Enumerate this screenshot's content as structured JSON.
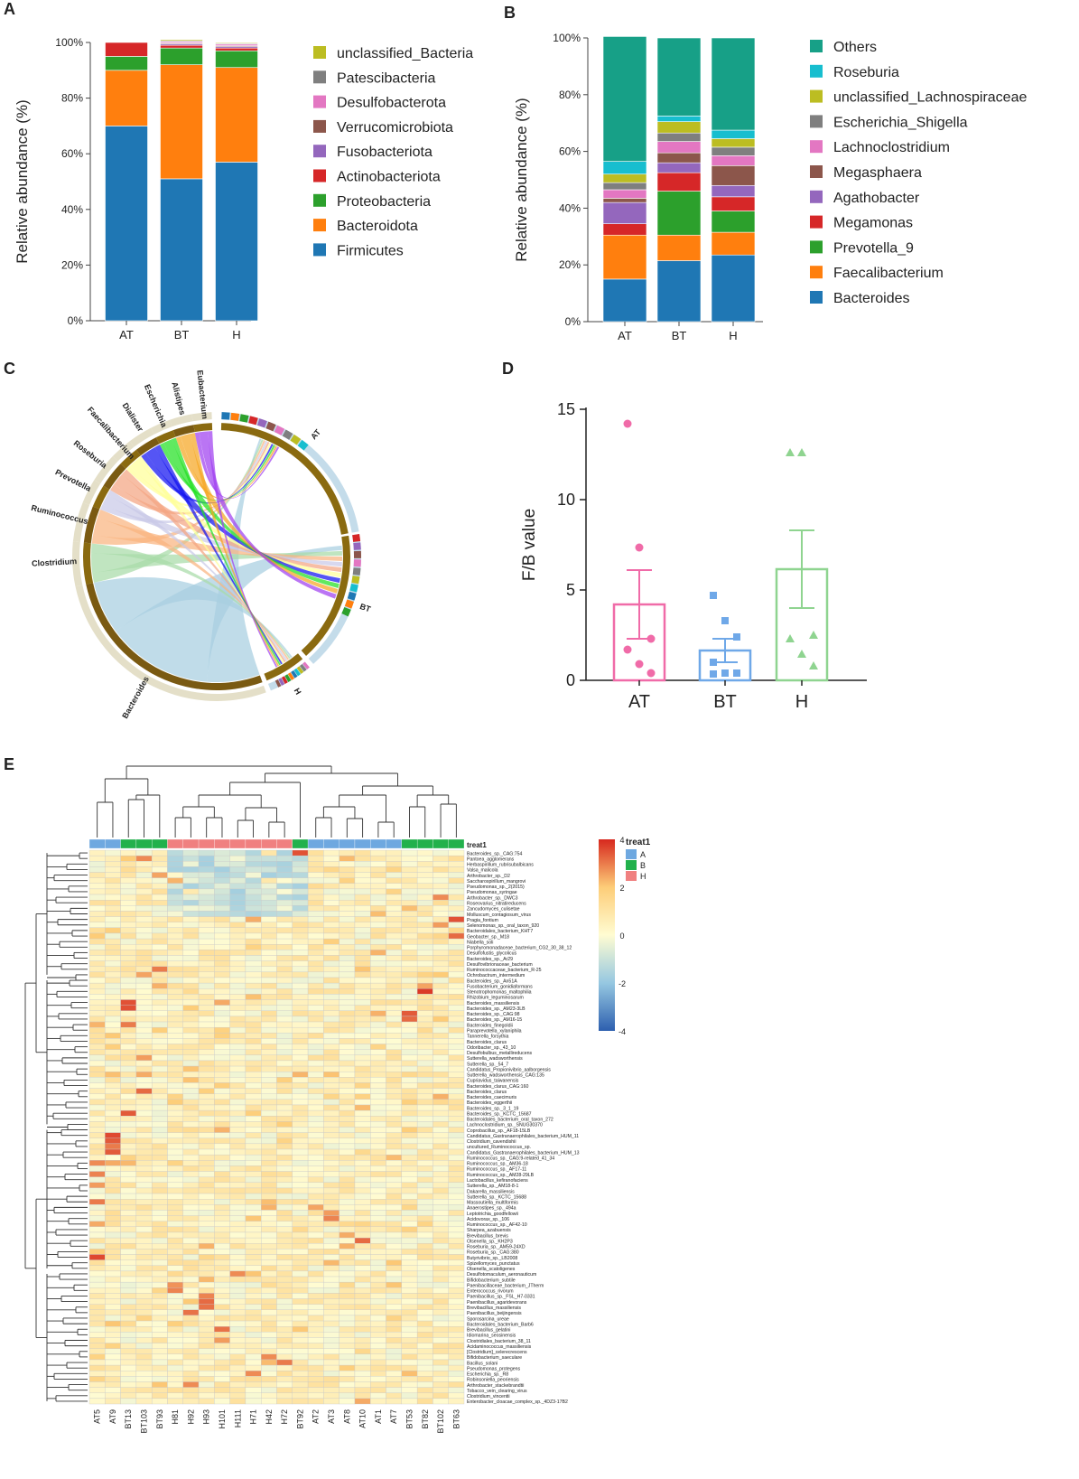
{
  "panels": {
    "a": "A",
    "b": "B",
    "c": "C",
    "d": "D",
    "e": "E"
  },
  "colors": {
    "firmicutes": "#1f77b4",
    "bacteroidota": "#ff7f0e",
    "proteobacteria": "#2ca02c",
    "actinobacteriota": "#d62728",
    "fusobacteriota": "#9467bd",
    "verrucomicrobiota": "#8c564b",
    "desulfobacterota": "#e377c2",
    "patescibacteria": "#7f7f7f",
    "unclassified_bacteria": "#bcbd22",
    "others": "#17a087",
    "roseburia": "#17becf",
    "bar_at": "#f06ba8",
    "bar_bt": "#6fa8e8",
    "bar_h": "#8fd490",
    "group_a": "#6ea8e0",
    "group_b": "#22b14c",
    "group_h": "#f08080"
  },
  "chart_data": [
    {
      "id": "A",
      "type": "bar",
      "stacked": true,
      "categories": [
        "AT",
        "BT",
        "H"
      ],
      "ylabel": "Relative abundance (%)",
      "yticks": [
        "0%",
        "20%",
        "40%",
        "60%",
        "80%",
        "100%"
      ],
      "ylim": [
        0,
        100
      ],
      "series": [
        {
          "name": "Firmicutes",
          "color": "#1f77b4",
          "values": [
            70,
            51,
            57
          ]
        },
        {
          "name": "Bacteroidota",
          "color": "#ff7f0e",
          "values": [
            20,
            41,
            34
          ]
        },
        {
          "name": "Proteobacteria",
          "color": "#2ca02c",
          "values": [
            5,
            6,
            6
          ]
        },
        {
          "name": "Actinobacteriota",
          "color": "#d62728",
          "values": [
            5,
            1,
            1
          ]
        },
        {
          "name": "Fusobacteriota",
          "color": "#9467bd",
          "values": [
            0,
            0.5,
            0.5
          ]
        },
        {
          "name": "Verrucomicrobiota",
          "color": "#8c564b",
          "values": [
            0,
            0.3,
            0.3
          ]
        },
        {
          "name": "Desulfobacterota",
          "color": "#e377c2",
          "values": [
            0,
            0.5,
            0.6
          ]
        },
        {
          "name": "Patescibacteria",
          "color": "#7f7f7f",
          "values": [
            0,
            0.3,
            0.3
          ]
        },
        {
          "name": "unclassified_Bacteria",
          "color": "#bcbd22",
          "values": [
            0,
            0.4,
            0.3
          ]
        }
      ],
      "legend": [
        "unclassified_Bacteria",
        "Patescibacteria",
        "Desulfobacterota",
        "Verrucomicrobiota",
        "Fusobacteriota",
        "Actinobacteriota",
        "Proteobacteria",
        "Bacteroidota",
        "Firmicutes"
      ]
    },
    {
      "id": "B",
      "type": "bar",
      "stacked": true,
      "categories": [
        "AT",
        "BT",
        "H"
      ],
      "ylabel": "Relative abundance (%)",
      "yticks": [
        "0%",
        "20%",
        "40%",
        "60%",
        "80%",
        "100%"
      ],
      "ylim": [
        0,
        100
      ],
      "series": [
        {
          "name": "Bacteroides",
          "color": "#1f77b4",
          "values": [
            15,
            21.5,
            23.5
          ]
        },
        {
          "name": "Faecalibacterium",
          "color": "#ff7f0e",
          "values": [
            15.5,
            9,
            8
          ]
        },
        {
          "name": "Prevotella_9",
          "color": "#2ca02c",
          "values": [
            0,
            15.5,
            7.5
          ]
        },
        {
          "name": "Megamonas",
          "color": "#d62728",
          "values": [
            4,
            6.5,
            5
          ]
        },
        {
          "name": "Agathobacter",
          "color": "#9467bd",
          "values": [
            7.5,
            3.5,
            4
          ]
        },
        {
          "name": "Megasphaera",
          "color": "#8c564b",
          "values": [
            1.5,
            3.5,
            7
          ]
        },
        {
          "name": "Lachnoclostridium",
          "color": "#e377c2",
          "values": [
            3,
            4,
            3.5
          ]
        },
        {
          "name": "Escherichia_Shigella",
          "color": "#7f7f7f",
          "values": [
            2.5,
            3,
            3
          ]
        },
        {
          "name": "unclassified_Lachnospiraceae",
          "color": "#bcbd22",
          "values": [
            3,
            4,
            3
          ]
        },
        {
          "name": "Roseburia",
          "color": "#17becf",
          "values": [
            4.5,
            2,
            3
          ]
        },
        {
          "name": "Others",
          "color": "#17a087",
          "values": [
            44,
            27.5,
            32.5
          ]
        }
      ],
      "legend": [
        "Others",
        "Roseburia",
        "unclassified_Lachnospiraceae",
        "Escherichia_Shigella",
        "Lachnoclostridium",
        "Megasphaera",
        "Agathobacter",
        "Megamonas",
        "Prevotella_9",
        "Faecalibacterium",
        "Bacteroides"
      ]
    },
    {
      "id": "C",
      "type": "chord",
      "genera": [
        "Bacteroides",
        "Clostridium",
        "Ruminococcus",
        "Prevotella",
        "Roseburia",
        "Faecalibacterium",
        "Dialister",
        "Escherichia",
        "Alistipes",
        "Eubacterium"
      ],
      "groups": [
        "AT",
        "BT",
        "H"
      ],
      "genus_colors": [
        "#a7cfe0",
        "#a8dba8",
        "#f9b480",
        "#c9c9e8",
        "#f4a582",
        "#ffff99",
        "#1414f0",
        "#22e022",
        "#f5a623",
        "#a040f0"
      ]
    },
    {
      "id": "D",
      "type": "bar",
      "categories": [
        "AT",
        "BT",
        "H"
      ],
      "ylabel": "F/B value",
      "yticks": [
        "0",
        "5",
        "10",
        "15"
      ],
      "ylim": [
        0,
        15
      ],
      "means": [
        4.2,
        1.65,
        6.15
      ],
      "sem": [
        1.9,
        0.65,
        2.15
      ],
      "points": [
        [
          14.2,
          7.35,
          2.3,
          1.7,
          0.9,
          0.4
        ],
        [
          4.7,
          3.3,
          2.4,
          1.0,
          0.4,
          0.4,
          0.35
        ],
        [
          12.6,
          12.6,
          2.5,
          2.3,
          1.45,
          0.8
        ]
      ],
      "markers": [
        "circle",
        "square",
        "triangle"
      ]
    },
    {
      "id": "E",
      "type": "heatmap",
      "columns": [
        "AT5",
        "AT9",
        "BT13",
        "BT103",
        "BT93",
        "H81",
        "H92",
        "H93",
        "H101",
        "H111",
        "H71",
        "H42",
        "H72",
        "BT92",
        "AT2",
        "AT3",
        "AT8",
        "AT10",
        "AT1",
        "AT7",
        "BT53",
        "BT82",
        "BT102",
        "BT63"
      ],
      "column_groups": [
        "A",
        "A",
        "B",
        "B",
        "B",
        "H",
        "H",
        "H",
        "H",
        "H",
        "H",
        "H",
        "H",
        "B",
        "A",
        "A",
        "A",
        "A",
        "A",
        "A",
        "B",
        "B",
        "B",
        "B"
      ],
      "annotation_title": "treat1",
      "annotation_legend": [
        "A",
        "B",
        "H"
      ],
      "scale_ticks": [
        "4",
        "2",
        "0",
        "-2",
        "-4"
      ],
      "scale_range": [
        -4,
        4
      ],
      "rows": [
        "Bacteroides_sp._CAG:754",
        "Pantoea_agglomerans",
        "Herbaspirillum_rubrisubalbicans",
        "Valsa_malicola",
        "Arthrobacter_sp._D2",
        "Saccharospirillum_mangrovi",
        "Pseudomonas_sp._2(2015)",
        "Pseudomonas_syringae",
        "Arthrobacter_sp._DWC3",
        "Roseovarius_nitratireducens",
        "Zancudomyces_culisetae",
        "Molluscum_contagiosum_virus",
        "Pragia_fontium",
        "Selenomonas_sp._oral_taxon_920",
        "Bacteroidales_bacterium_KHT7",
        "Geobacter_sp._M18",
        "Niabella_soli",
        "Porphyromonadaceae_bacterium_CG2_30_38_12",
        "Desulfofustis_glycolicus",
        "Bacteroides_sp._Ar29",
        "Desulfovibrionaceae_bacterium",
        "Ruminococcaceae_bacterium_R-25",
        "Ochrobactrum_intermedium",
        "Bacteroides_sp._An51A",
        "Fusobacterium_gonidiaformans",
        "Stenotrophomonas_maltophilia",
        "Rhizobium_leguminosarum",
        "Bacteroides_massiliensis",
        "Bacteroides_sp._AM23-3LB",
        "Bacteroides_sp._CAG:98",
        "Bacteroides_sp._AM16-15",
        "Bacteroides_finegoldii",
        "Paraprevotella_xylaniphila",
        "Tannerella_forsythia",
        "Bacteroides_clarus",
        "Odoribacter_sp._43_10",
        "Desulfobulbus_metallireducens",
        "Sutterella_wadsworthensis",
        "Sutterella_sp._54_7",
        "Candidatus_Propionivibrio_aalborgensis",
        "Sutterella_wadsworthensis_CAG:135",
        "Cupriavidus_taiwanensis",
        "Bacteroides_clarus_CAG:160",
        "Bacteroides_clarus",
        "Bacteroides_caecimuris",
        "Bacteroides_eggerthii",
        "Bacteroides_sp._3_1_19",
        "Bacteroides_sp._KCTC_15687",
        "Bacteroidales_bacterium_oral_taxon_272",
        "Lachnoclostridium_sp._SNUG30370",
        "Coprobacillus_sp._AF18-15LB",
        "Candidatus_Gastranaerophilales_bacterium_HUM_11",
        "Clostridium_cavendishii",
        "uncultured_Ruminococcus_sp.",
        "Candidatus_Gastranaerophilales_bacterium_HUM_13",
        "Ruminococcus_sp._CAG:9-related_41_34",
        "Ruminococcus_sp._AM36-18",
        "Ruminococcus_sp._AF17-11",
        "Ruminococcus_sp._AM28-29LB",
        "Lactobacillus_kefiranofaciens",
        "Sutterella_sp._AM18-8-1",
        "Dakarella_massiliensis",
        "Sutterella_sp._KCTC_15688",
        "Massoutiella_multiformis",
        "Anaerostipes_sp._494a",
        "Leptotrichia_goodfellowii",
        "Acidovorax_sp._106",
        "Ruminococcus_sp._AF42-10",
        "Sharpea_azabuensis",
        "Brevibacillus_brevis",
        "Olsenella_sp._KH2P3",
        "Roseburia_sp._AM59-24XD",
        "Roseburia_sp._CAG:380",
        "Butyrivibrio_sp._LB2008",
        "Spizellomyces_punctatus",
        "Olsenella_scatoligenes",
        "Desulfotomaculum_aeronauticum",
        "Bifidobacterium_subtile",
        "Paenibacillaceae_bacterium_JTherm",
        "Enterococcus_rivorum",
        "Paenibacillus_sp._FSL_H7-0331",
        "Paenibacillus_agaridevorans",
        "Brevibacillus_massiliensis",
        "Paenibacillus_beijingensis",
        "Sporosarcina_ureae",
        "Bacteroidales_bacterium_Barb6",
        "Brevibacillus_gelatini",
        "Idiomarina_seosinensis",
        "Clostridiales_bacterium_38_11",
        "Acidaminococcus_massiliensis",
        "[Clostridium]_celerecrescens",
        "Bifidobacterium_saeculare",
        "Bacillus_solani",
        "Pseudomonas_protegens",
        "Escherichia_sp._R8",
        "Robinsoniella_peoriensis",
        "Arthrobacter_stackebrandtii",
        "Tobacco_vein_clearing_virus",
        "Clostridium_vincentii",
        "Enterobacter_cloacae_complex_sp._4DZ3-17B2"
      ]
    }
  ]
}
